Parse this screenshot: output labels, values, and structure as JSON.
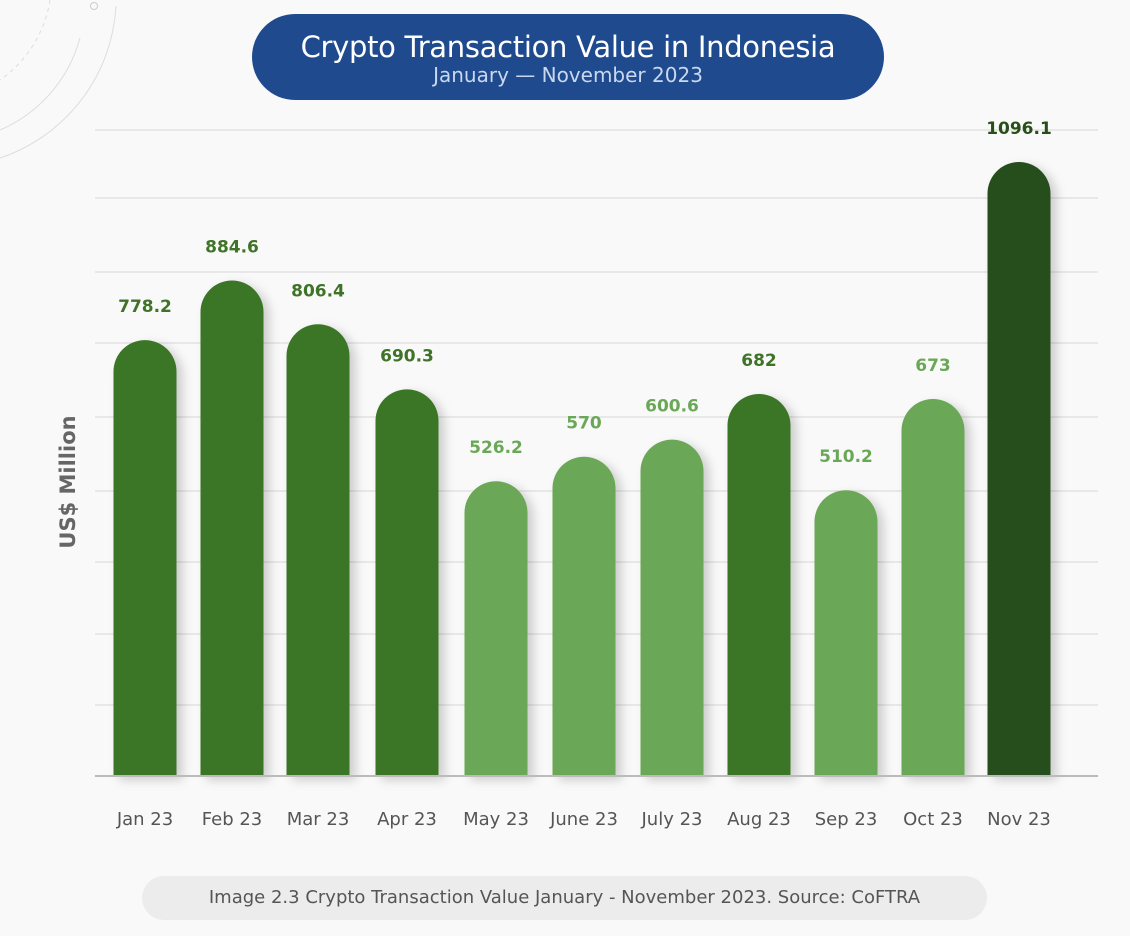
{
  "header": {
    "title": "Crypto Transaction Value in Indonesia",
    "subtitle": "January — November 2023"
  },
  "caption": "Image 2.3 Crypto Transaction Value January - November 2023. Source: CoFTRA",
  "chart_data": {
    "type": "bar",
    "title": "Crypto Transaction Value in Indonesia",
    "subtitle": "January — November 2023",
    "xlabel": "",
    "ylabel": "US$ Million",
    "categories": [
      "Jan 23",
      "Feb 23",
      "Mar 23",
      "Apr 23",
      "May 23",
      "June 23",
      "July 23",
      "Aug 23",
      "Sep 23",
      "Oct 23",
      "Nov 23"
    ],
    "values": [
      778.2,
      884.6,
      806.4,
      690.3,
      526.2,
      570,
      600.6,
      682,
      510.2,
      673,
      1096.1
    ],
    "labels": [
      "778.2",
      "884.6",
      "806.4",
      "690.3",
      "526.2",
      "570",
      "600.6",
      "682",
      "510.2",
      "673",
      "1096.1"
    ],
    "bar_colors": [
      "#3a7526",
      "#3a7526",
      "#3a7526",
      "#3a7526",
      "#6aa757",
      "#6aa757",
      "#6aa757",
      "#3a7526",
      "#6aa757",
      "#6aa757",
      "#284e1a"
    ],
    "label_colors": [
      "#3f7327",
      "#3f7327",
      "#3f7327",
      "#3f7327",
      "#6aa757",
      "#6aa757",
      "#6aa757",
      "#3f7327",
      "#6aa757",
      "#6aa757",
      "#284e1a"
    ],
    "ylim": [
      0,
      1150
    ],
    "grid": true,
    "y_tick_labels_shown": false
  },
  "colors": {
    "title_bg": "#1f4b8e",
    "grid": "#dddddd"
  }
}
